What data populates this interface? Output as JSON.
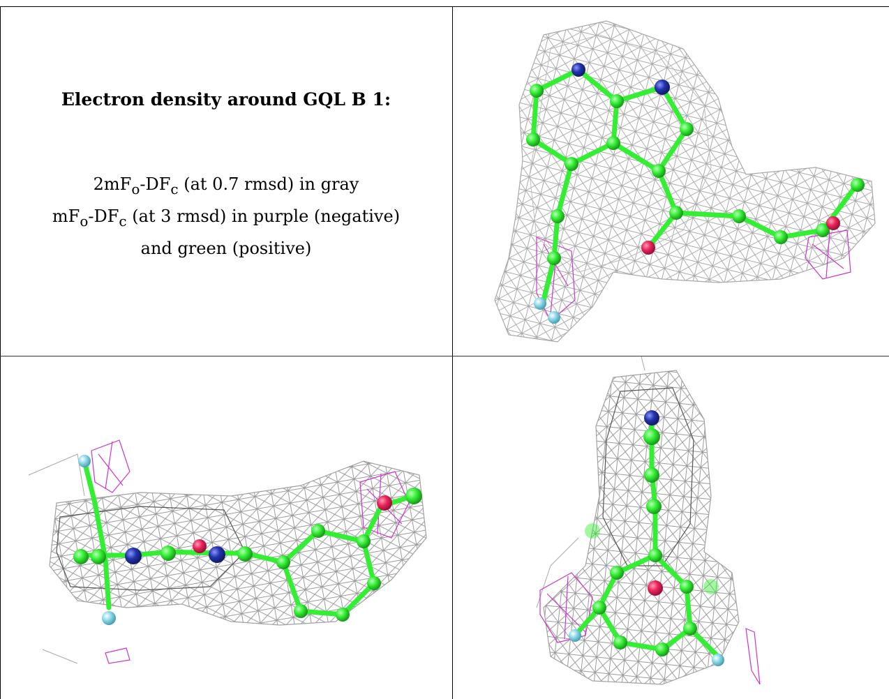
{
  "caption": {
    "title": "Electron density around GQL B 1:",
    "line1_prefix": "2mF",
    "line1_sub_o": "o",
    "line1_mid": "-DF",
    "line1_sub_c": "c",
    "line1_suffix": " (at 0.7 rmsd) in gray",
    "line2_prefix": "mF",
    "line2_sub_o": "o",
    "line2_mid": "-DF",
    "line2_sub_c": "c",
    "line2_suffix": " (at 3 rmsd) in purple (negative)",
    "line3": "and green (positive)"
  },
  "colors": {
    "mesh_gray": "#a8a8a8",
    "mesh_purple": "#cc33cc",
    "carbon_green": "#33ee33",
    "nitrogen_blue": "#2233aa",
    "oxygen_red": "#e8245a",
    "fluorine_cyan": "#88d8e8",
    "border": "#000000"
  },
  "panels": [
    {
      "view": "top-right"
    },
    {
      "view": "bottom-left"
    },
    {
      "view": "bottom-right"
    }
  ]
}
